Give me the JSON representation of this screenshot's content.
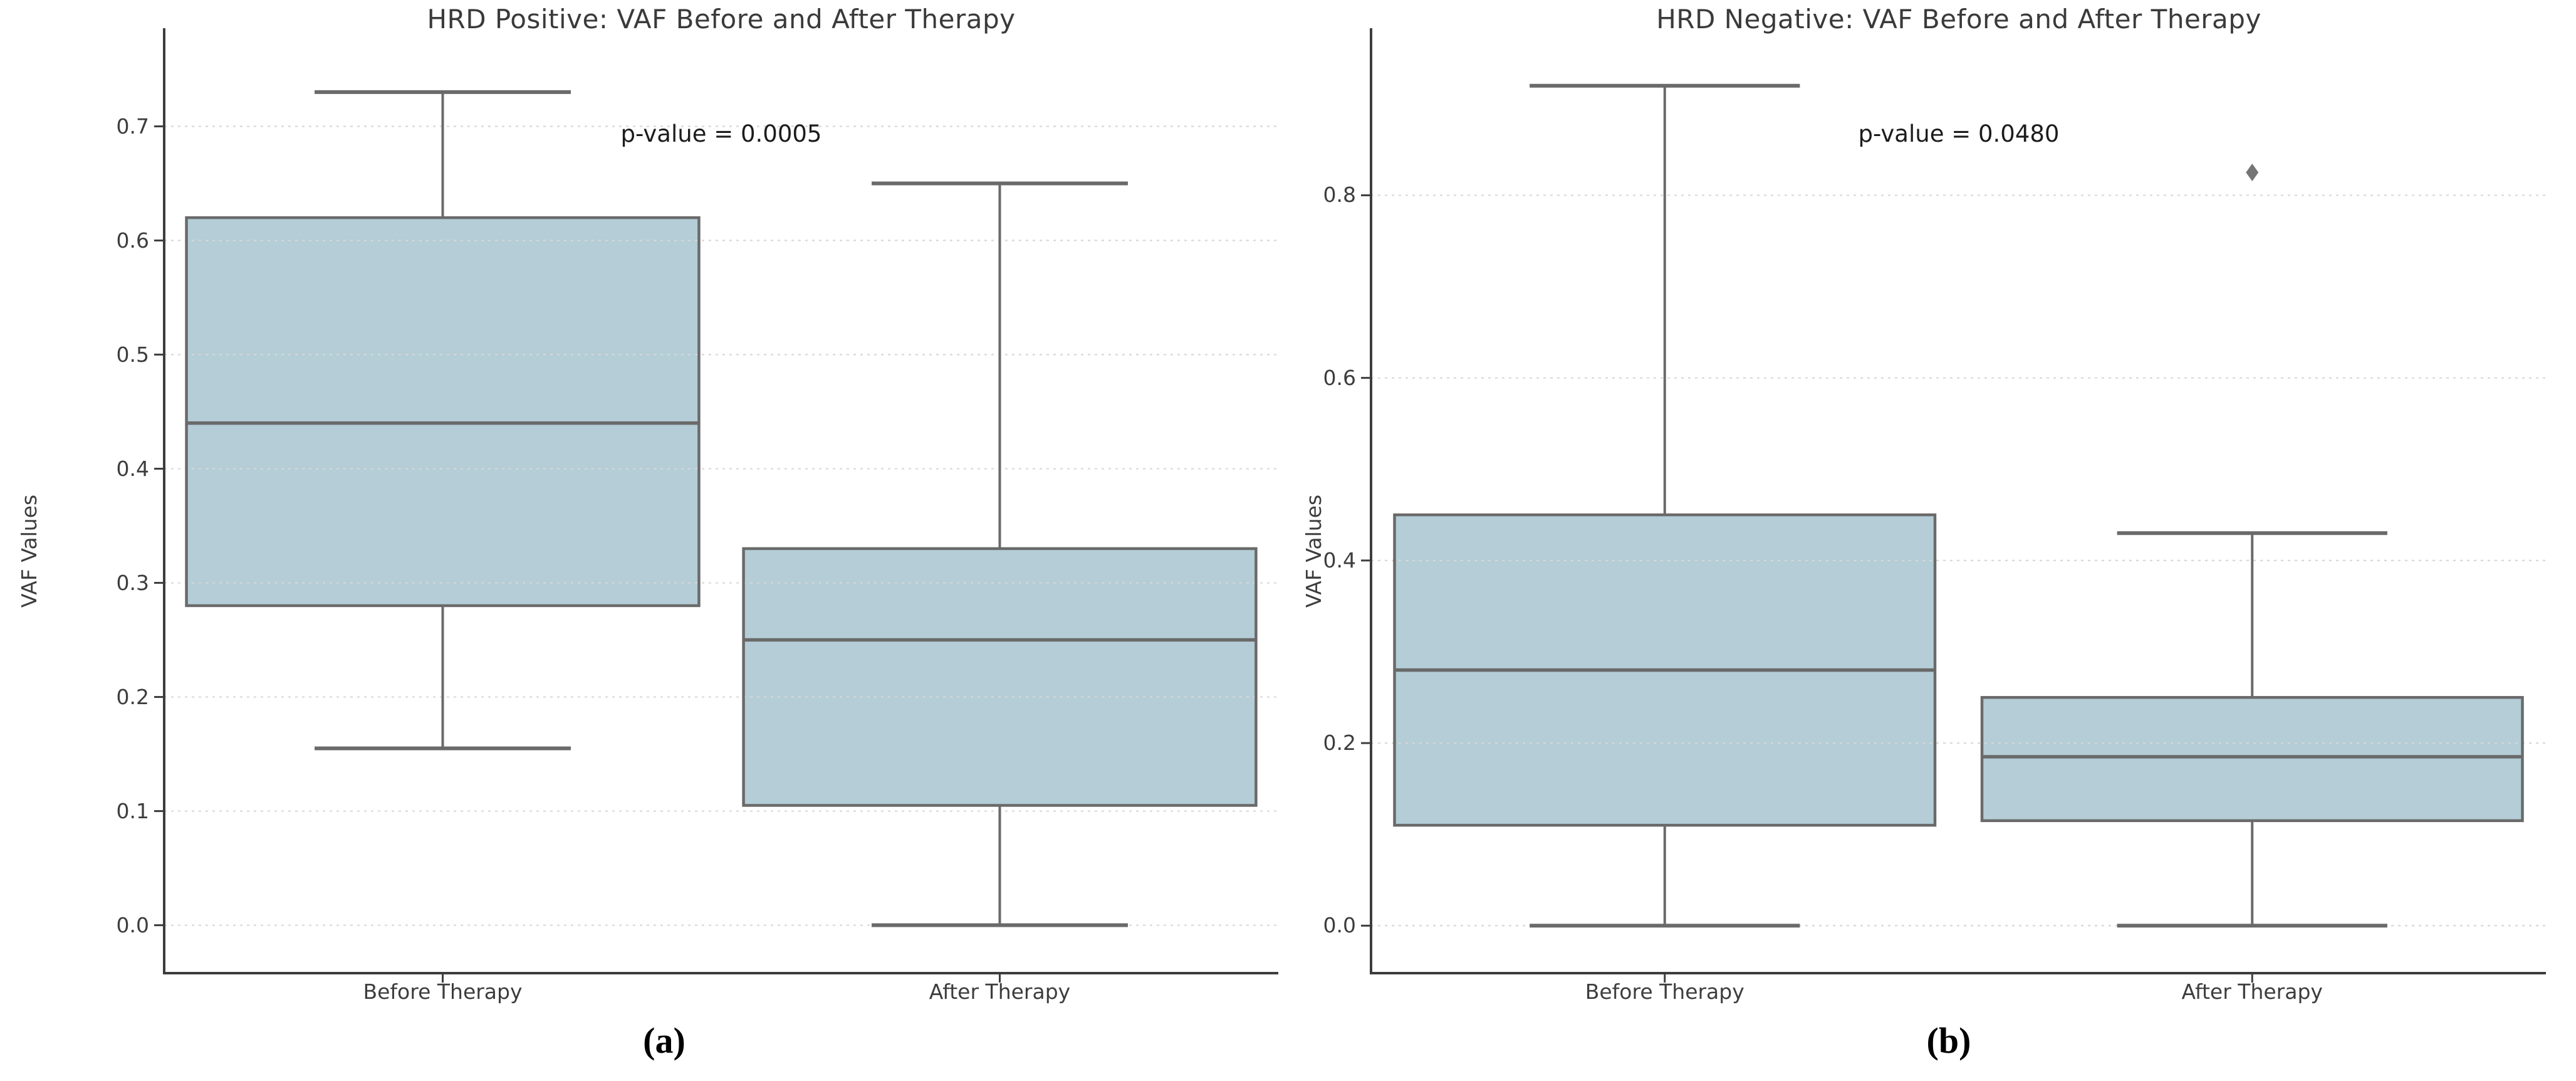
{
  "figure": {
    "background": "#ffffff",
    "type": "two-panel boxplot figure"
  },
  "colors": {
    "box_fill": "#b4cdd7",
    "box_edge": "#6a6a6a",
    "median_line": "#6a6a6a",
    "whisker": "#6a6a6a",
    "outlier": "#757575",
    "gridline": "#d8d8d8",
    "spine": "#3d3d3d",
    "tick_text": "#3d3d3d",
    "title_text": "#3a3a3a",
    "annotation_text": "#1c1c1c",
    "caption_text": "#000000"
  },
  "chart_data": [
    {
      "type": "boxplot",
      "caption": "(a)",
      "title": "HRD Positive: VAF Before and After Therapy",
      "annotation": "p-value = 0.0005",
      "ylabel": "VAF Values",
      "categories": [
        "Before Therapy",
        "After Therapy"
      ],
      "yticks": [
        0.0,
        0.1,
        0.2,
        0.3,
        0.4,
        0.5,
        0.6,
        0.7
      ],
      "ytick_decimals": 1,
      "ylim": [
        -0.042,
        0.786
      ],
      "grid": true,
      "legend": "none",
      "series": [
        {
          "name": "Before Therapy",
          "whisker_low": 0.155,
          "q1": 0.28,
          "median": 0.44,
          "q3": 0.62,
          "whisker_high": 0.73,
          "outliers": []
        },
        {
          "name": "After Therapy",
          "whisker_low": 0.0,
          "q1": 0.105,
          "median": 0.25,
          "q3": 0.33,
          "whisker_high": 0.65,
          "outliers": []
        }
      ]
    },
    {
      "type": "boxplot",
      "caption": "(b)",
      "title": "HRD Negative: VAF Before and After Therapy",
      "annotation": "p-value = 0.0480",
      "ylabel": "VAF Values",
      "categories": [
        "Before Therapy",
        "After Therapy"
      ],
      "yticks": [
        0.0,
        0.2,
        0.4,
        0.6,
        0.8
      ],
      "ytick_decimals": 1,
      "ylim": [
        -0.052,
        0.983
      ],
      "grid": true,
      "legend": "none",
      "series": [
        {
          "name": "Before Therapy",
          "whisker_low": 0.0,
          "q1": 0.11,
          "median": 0.28,
          "q3": 0.45,
          "whisker_high": 0.92,
          "outliers": []
        },
        {
          "name": "After Therapy",
          "whisker_low": 0.0,
          "q1": 0.115,
          "median": 0.185,
          "q3": 0.25,
          "whisker_high": 0.43,
          "outliers": [
            0.825
          ]
        }
      ]
    }
  ]
}
